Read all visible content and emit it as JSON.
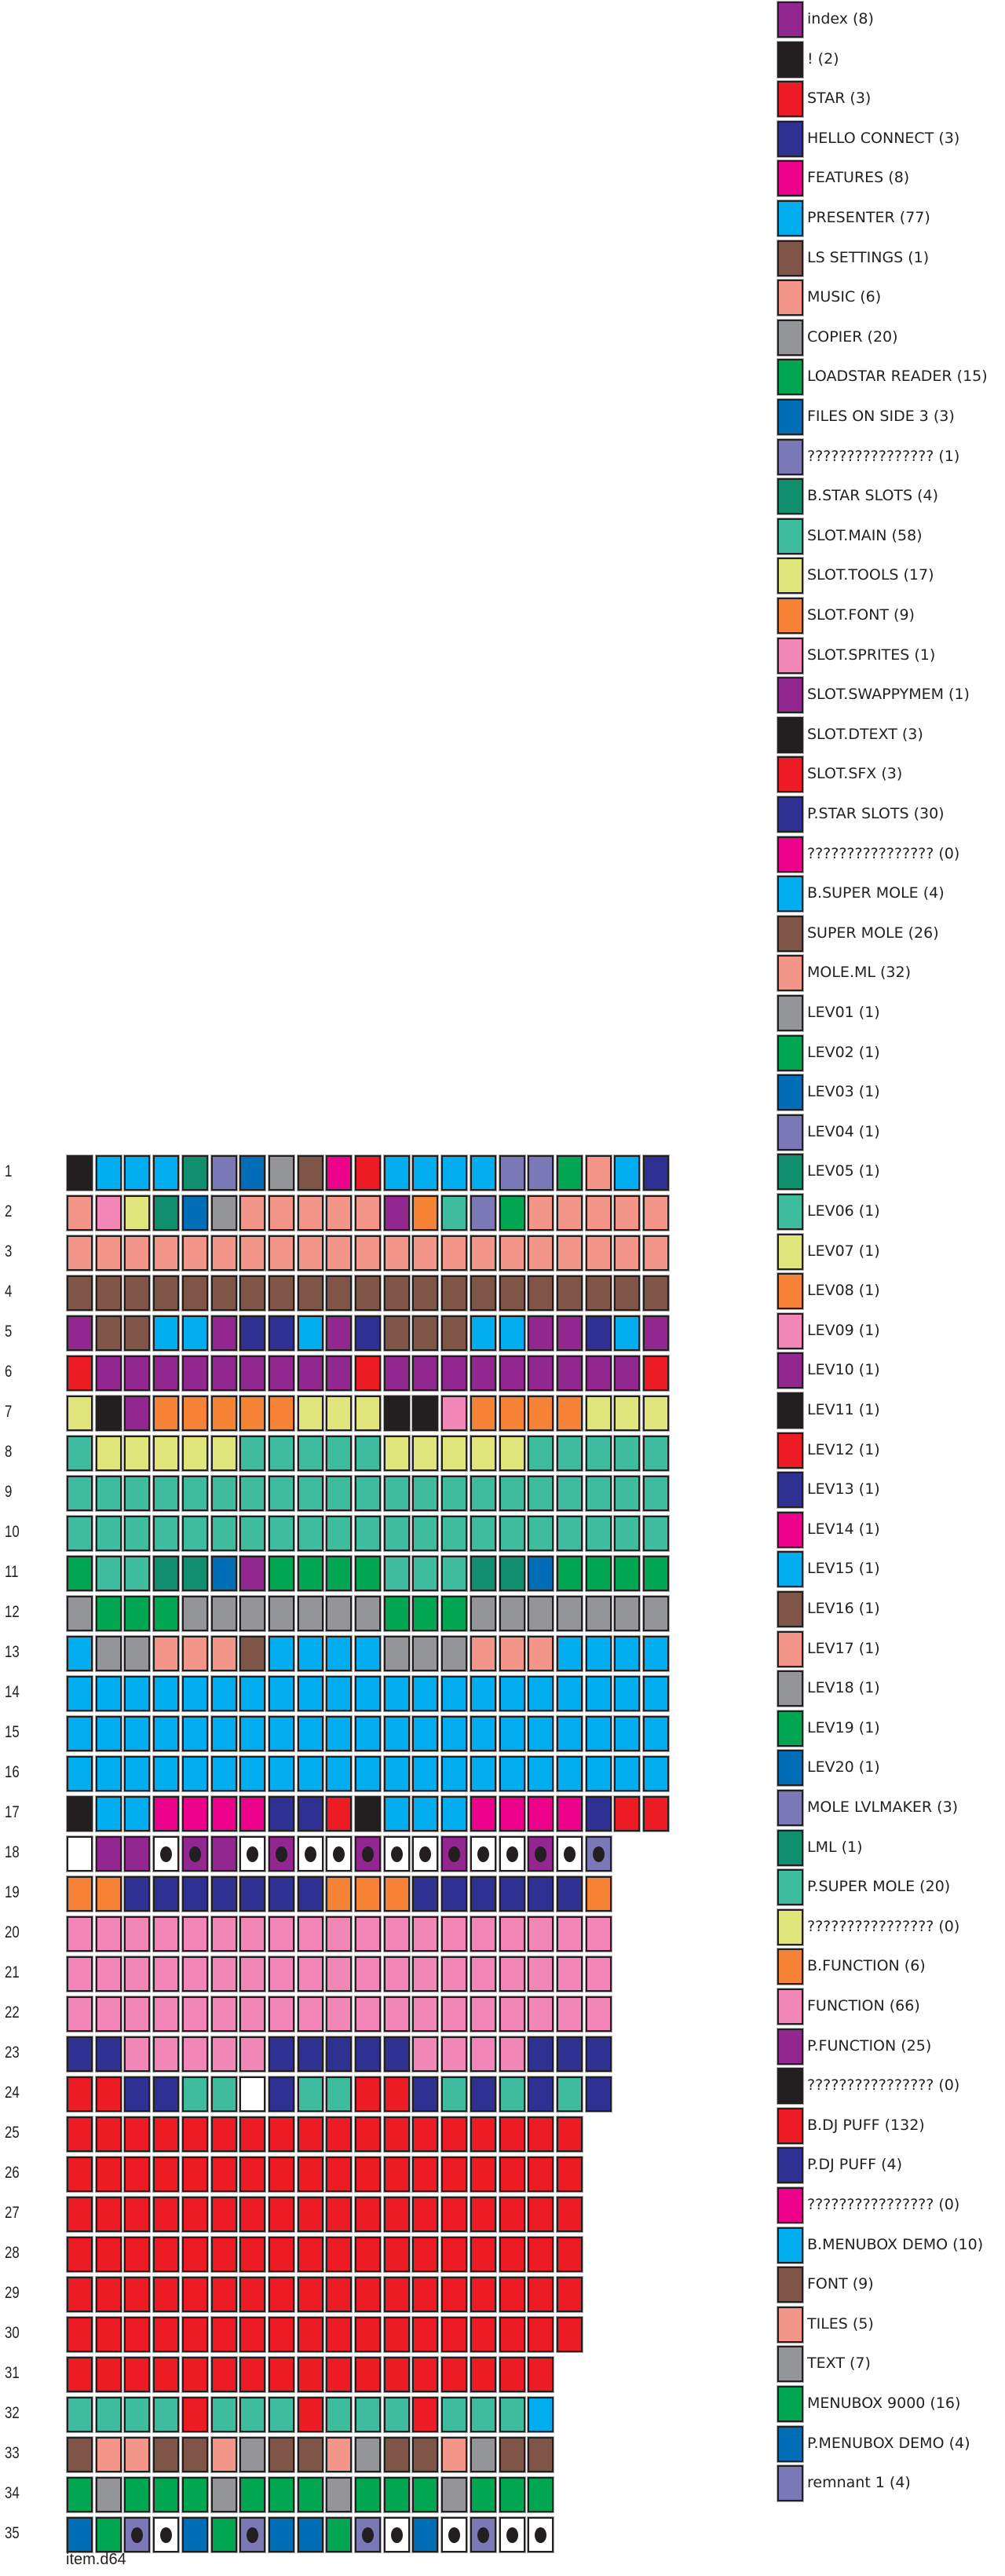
{
  "palette": {
    "P": "#92278f",
    "K": "#231f20",
    "R": "#ed1c24",
    "N": "#2e3192",
    "M": "#ec008c",
    "C": "#00aeef",
    "B": "#7f5548",
    "S": "#f4958a",
    "G": "#939598",
    "E": "#00a651",
    "U": "#006db6",
    "L": "#7b78b8",
    "T": "#108e6e",
    "I": "#3fbc9d",
    "Y": "#dfe57a",
    "O": "#f68236",
    "p": "#f287b7",
    "W": "#ffffff"
  },
  "legend": [
    {
      "label": "index (8)",
      "color": "P"
    },
    {
      "label": "! (2)",
      "color": "K"
    },
    {
      "label": "STAR (3)",
      "color": "R"
    },
    {
      "label": "HELLO CONNECT (3)",
      "color": "N"
    },
    {
      "label": "FEATURES (8)",
      "color": "M"
    },
    {
      "label": "PRESENTER (77)",
      "color": "C"
    },
    {
      "label": "LS SETTINGS (1)",
      "color": "B"
    },
    {
      "label": "MUSIC (6)",
      "color": "S"
    },
    {
      "label": "COPIER (20)",
      "color": "G"
    },
    {
      "label": "LOADSTAR READER (15)",
      "color": "E"
    },
    {
      "label": "FILES ON SIDE 3 (3)",
      "color": "U"
    },
    {
      "label": "???????????????? (1)",
      "color": "L"
    },
    {
      "label": "B.STAR SLOTS (4)",
      "color": "T"
    },
    {
      "label": "SLOT.MAIN (58)",
      "color": "I"
    },
    {
      "label": "SLOT.TOOLS (17)",
      "color": "Y"
    },
    {
      "label": "SLOT.FONT (9)",
      "color": "O"
    },
    {
      "label": "SLOT.SPRITES (1)",
      "color": "p"
    },
    {
      "label": "SLOT.SWAPPYMEM (1)",
      "color": "P"
    },
    {
      "label": "SLOT.DTEXT (3)",
      "color": "K"
    },
    {
      "label": "SLOT.SFX (3)",
      "color": "R"
    },
    {
      "label": "P.STAR SLOTS (30)",
      "color": "N"
    },
    {
      "label": "???????????????? (0)",
      "color": "M"
    },
    {
      "label": "B.SUPER MOLE (4)",
      "color": "C"
    },
    {
      "label": "SUPER MOLE (26)",
      "color": "B"
    },
    {
      "label": "MOLE.ML (32)",
      "color": "S"
    },
    {
      "label": "LEV01 (1)",
      "color": "G"
    },
    {
      "label": "LEV02 (1)",
      "color": "E"
    },
    {
      "label": "LEV03 (1)",
      "color": "U"
    },
    {
      "label": "LEV04 (1)",
      "color": "L"
    },
    {
      "label": "LEV05 (1)",
      "color": "T"
    },
    {
      "label": "LEV06 (1)",
      "color": "I"
    },
    {
      "label": "LEV07 (1)",
      "color": "Y"
    },
    {
      "label": "LEV08 (1)",
      "color": "O"
    },
    {
      "label": "LEV09 (1)",
      "color": "p"
    },
    {
      "label": "LEV10 (1)",
      "color": "P"
    },
    {
      "label": "LEV11 (1)",
      "color": "K"
    },
    {
      "label": "LEV12 (1)",
      "color": "R"
    },
    {
      "label": "LEV13 (1)",
      "color": "N"
    },
    {
      "label": "LEV14 (1)",
      "color": "M"
    },
    {
      "label": "LEV15 (1)",
      "color": "C"
    },
    {
      "label": "LEV16 (1)",
      "color": "B"
    },
    {
      "label": "LEV17 (1)",
      "color": "S"
    },
    {
      "label": "LEV18 (1)",
      "color": "G"
    },
    {
      "label": "LEV19 (1)",
      "color": "E"
    },
    {
      "label": "LEV20 (1)",
      "color": "U"
    },
    {
      "label": "MOLE LVLMAKER (3)",
      "color": "L"
    },
    {
      "label": "LML (1)",
      "color": "T"
    },
    {
      "label": "P.SUPER MOLE (20)",
      "color": "I"
    },
    {
      "label": "???????????????? (0)",
      "color": "Y"
    },
    {
      "label": "B.FUNCTION (6)",
      "color": "O"
    },
    {
      "label": "FUNCTION (66)",
      "color": "p"
    },
    {
      "label": "P.FUNCTION (25)",
      "color": "P"
    },
    {
      "label": "???????????????? (0)",
      "color": "K"
    },
    {
      "label": "B.DJ PUFF (132)",
      "color": "R"
    },
    {
      "label": "P.DJ PUFF (4)",
      "color": "N"
    },
    {
      "label": "???????????????? (0)",
      "color": "M"
    },
    {
      "label": "B.MENUBOX DEMO (10)",
      "color": "C"
    },
    {
      "label": "FONT (9)",
      "color": "B"
    },
    {
      "label": "TILES (5)",
      "color": "S"
    },
    {
      "label": "TEXT (7)",
      "color": "G"
    },
    {
      "label": "MENUBOX 9000 (16)",
      "color": "E"
    },
    {
      "label": "P.MENUBOX DEMO (4)",
      "color": "U"
    },
    {
      "label": "remnant 1 (4)",
      "color": "L"
    }
  ],
  "tracks": [
    {
      "label": "1",
      "sectors": "K C C C T L U G B M R C C C C L L E S C N"
    },
    {
      "label": "2",
      "sectors": "S p Y T U G S S S S S P O I L E S S S S S"
    },
    {
      "label": "3",
      "sectors": "S S S S S S S S S S S S S S S S S S S S S"
    },
    {
      "label": "4",
      "sectors": "B B B B B B B B B B B B B B B B B B B B B"
    },
    {
      "label": "5",
      "sectors": "P B B C C P N N C P N B B B C C P P N C P"
    },
    {
      "label": "6",
      "sectors": "R P P P P P P P P P R P P P P P P P P P R"
    },
    {
      "label": "7",
      "sectors": "Y K P O O O O O Y Y Y K K p O O O O Y Y Y"
    },
    {
      "label": "8",
      "sectors": "I Y Y Y Y Y I I I I I Y Y Y Y Y I I I I I"
    },
    {
      "label": "9",
      "sectors": "I I I I I I I I I I I I I I I I I I I I I"
    },
    {
      "label": "10",
      "sectors": "I I I I I I I I I I I I I I I I I I I I I"
    },
    {
      "label": "11",
      "sectors": "E I I T T U P E E E E I I I T T U E E E E"
    },
    {
      "label": "12",
      "sectors": "G E E E G G G G G G G E E E G G G G G G G"
    },
    {
      "label": "13",
      "sectors": "C G G S S S B C C C C G G G S S S C C C C"
    },
    {
      "label": "14",
      "sectors": "C C C C C C C C C C C C C C C C C C C C C"
    },
    {
      "label": "15",
      "sectors": "C C C C C C C C C C C C C C C C C C C C C"
    },
    {
      "label": "16",
      "sectors": "C C C C C C C C C C C C C C C C C C C C C"
    },
    {
      "label": "17",
      "sectors": "K C C M M M M N N R K C C C M M M M N R R"
    },
    {
      "label": "18",
      "sectors": "W P P W* P* P W* P* W* W* P* W* W* P* W* W* P* W* L*"
    },
    {
      "label": "19",
      "sectors": "O O N N N N N N N O O O N N N N N N O"
    },
    {
      "label": "20",
      "sectors": "p p p p p p p p p p p p p p p p p p p"
    },
    {
      "label": "21",
      "sectors": "p p p p p p p p p p p p p p p p p p p"
    },
    {
      "label": "22",
      "sectors": "p p p p p p p p p p p p p p p p p p p"
    },
    {
      "label": "23",
      "sectors": "N N p p p p p N N N N N p p p p N N N"
    },
    {
      "label": "24",
      "sectors": "R R N N I I W N I I R R N I N I N I N"
    },
    {
      "label": "25",
      "sectors": "R R R R R R R R R R R R R R R R R R"
    },
    {
      "label": "26",
      "sectors": "R R R R R R R R R R R R R R R R R R"
    },
    {
      "label": "27",
      "sectors": "R R R R R R R R R R R R R R R R R R"
    },
    {
      "label": "28",
      "sectors": "R R R R R R R R R R R R R R R R R R"
    },
    {
      "label": "29",
      "sectors": "R R R R R R R R R R R R R R R R R R"
    },
    {
      "label": "30",
      "sectors": "R R R R R R R R R R R R R R R R R R"
    },
    {
      "label": "31",
      "sectors": "R R R R R R R R R R R R R R R R R"
    },
    {
      "label": "32",
      "sectors": "I I I I R I I I R I I I R I I I C"
    },
    {
      "label": "33",
      "sectors": "B S S B B S G B B S G B B S G B B"
    },
    {
      "label": "34",
      "sectors": "E G E E E G E E E G E E E G E E E"
    },
    {
      "label": "35",
      "sectors": "U E L* W* U E L* U U E L* W* U W* L* W* W*"
    }
  ],
  "caption": "item.d64"
}
